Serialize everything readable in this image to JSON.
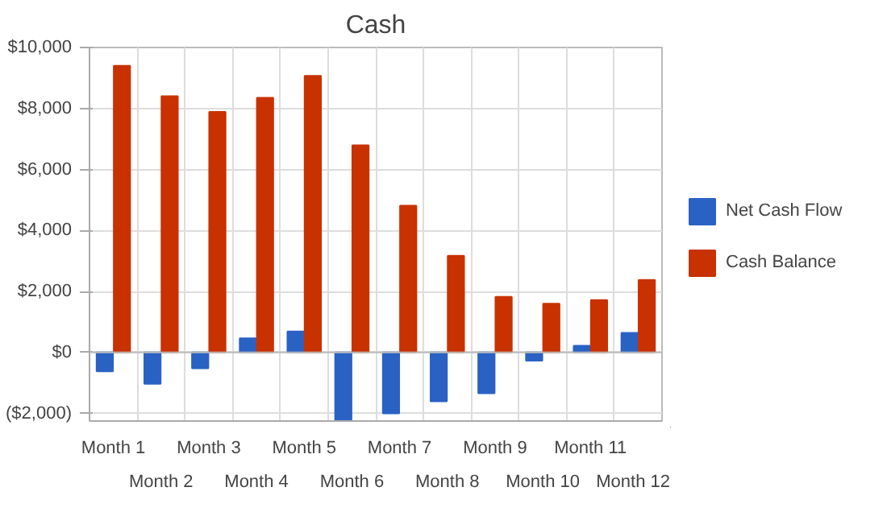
{
  "chart_data": {
    "type": "bar",
    "title": "Cash",
    "categories": [
      "Month 1",
      "Month 2",
      "Month 3",
      "Month 4",
      "Month 5",
      "Month 6",
      "Month 7",
      "Month 8",
      "Month 9",
      "Month 10",
      "Month 11",
      "Month 12"
    ],
    "series": [
      {
        "name": "Net Cash Flow",
        "color": "#2a62c4",
        "values": [
          -620,
          -1030,
          -520,
          460,
          690,
          -2250,
          -2000,
          -1600,
          -1340,
          -270,
          220,
          640
        ]
      },
      {
        "name": "Cash Balance",
        "color": "#c83200",
        "values": [
          9400,
          8400,
          7890,
          8350,
          9070,
          6790,
          4810,
          3170,
          1820,
          1600,
          1720,
          2380
        ]
      }
    ],
    "ylim": [
      -2250,
      10000
    ],
    "yticks": [
      {
        "value": -2000,
        "label": "($2,000)"
      },
      {
        "value": 0,
        "label": "$0"
      },
      {
        "value": 2000,
        "label": "$2,000"
      },
      {
        "value": 4000,
        "label": "$4,000"
      },
      {
        "value": 6000,
        "label": "$6,000"
      },
      {
        "value": 8000,
        "label": "$8,000"
      },
      {
        "value": 10000,
        "label": "$10,000"
      }
    ],
    "grid": true,
    "legend": "right"
  }
}
